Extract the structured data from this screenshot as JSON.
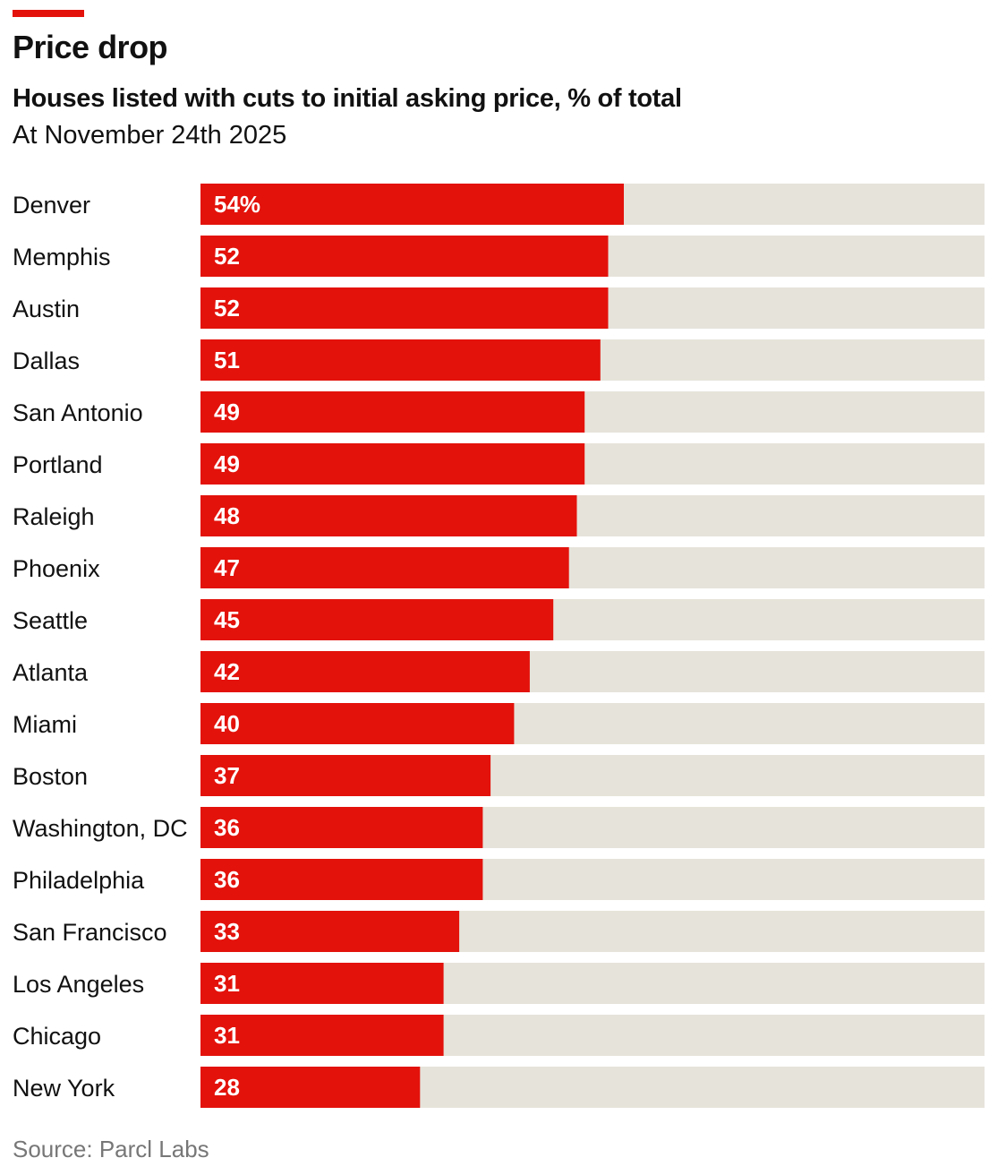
{
  "header": {
    "title": "Price drop",
    "subtitle": "Houses listed with cuts to initial asking price, % of total",
    "date_note": "At November 24th 2025"
  },
  "source": "Source: Parcl Labs",
  "colors": {
    "accent": "#e3120b",
    "bar": "#e3120b",
    "track": "#e6e3da",
    "label_text": "#111111",
    "value_text": "#ffffff",
    "source_text": "#777777"
  },
  "chart_data": {
    "type": "bar",
    "orientation": "horizontal",
    "title": "Price drop",
    "subtitle": "Houses listed with cuts to initial asking price, % of total",
    "xlabel": "",
    "ylabel": "",
    "xlim": [
      0,
      100
    ],
    "unit_suffix_first": "%",
    "categories": [
      "Denver",
      "Memphis",
      "Austin",
      "Dallas",
      "San Antonio",
      "Portland",
      "Raleigh",
      "Phoenix",
      "Seattle",
      "Atlanta",
      "Miami",
      "Boston",
      "Washington, DC",
      "Philadelphia",
      "San Francisco",
      "Los Angeles",
      "Chicago",
      "New York"
    ],
    "values": [
      54,
      52,
      52,
      51,
      49,
      49,
      48,
      47,
      45,
      42,
      40,
      37,
      36,
      36,
      33,
      31,
      31,
      28
    ],
    "value_labels": [
      "54%",
      "52",
      "52",
      "51",
      "49",
      "49",
      "48",
      "47",
      "45",
      "42",
      "40",
      "37",
      "36",
      "36",
      "33",
      "31",
      "31",
      "28"
    ]
  }
}
